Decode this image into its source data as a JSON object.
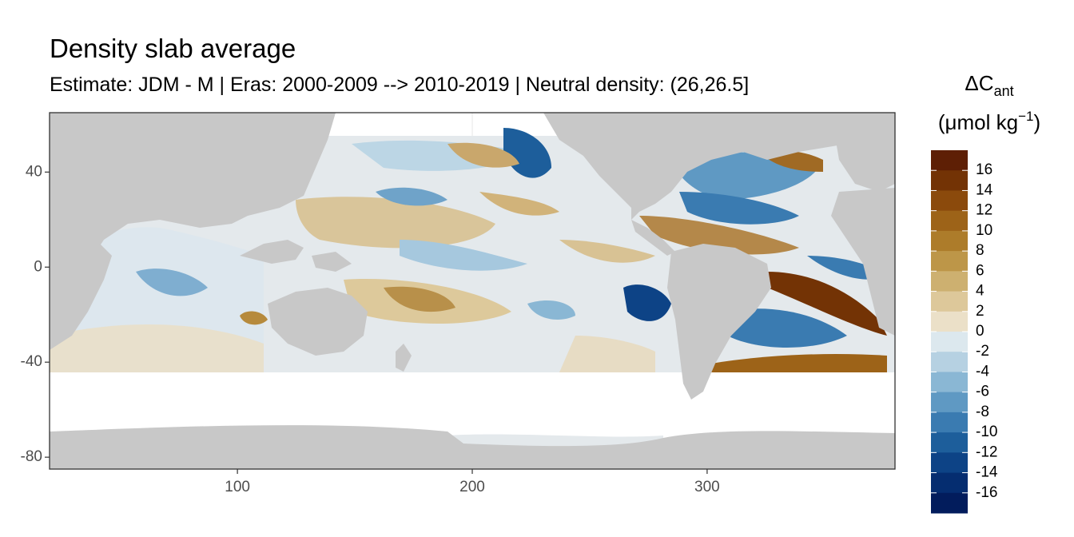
{
  "title": "Density slab average",
  "subtitle": "Estimate: JDM - M | Eras: 2000-2009 --> 2010-2019 | Neutral density: (26,26.5]",
  "legend": {
    "title_main": "ΔC",
    "title_sub": "ant",
    "unit_prefix": "(μmol kg",
    "unit_sup": "−1",
    "unit_suffix": ")",
    "labels": [
      "16",
      "14",
      "12",
      "10",
      "8",
      "6",
      "4",
      "2",
      "0",
      "-2",
      "-4",
      "-6",
      "-8",
      "-10",
      "-12",
      "-14",
      "-16"
    ],
    "colors": [
      "#5e1f05",
      "#733305",
      "#8b4a0c",
      "#9d6318",
      "#ad7c2a",
      "#bd9648",
      "#cdb070",
      "#ddc89a",
      "#ebe0c8",
      "#dce8ee",
      "#b6d1e2",
      "#8ab7d4",
      "#5f99c3",
      "#3a7bb1",
      "#1d5e9b",
      "#0d4386",
      "#052d70",
      "#021c5c"
    ],
    "land_color": "#c8c8c8"
  },
  "axes": {
    "x_ticks": [
      100,
      200,
      300
    ],
    "y_ticks": [
      40,
      0,
      -40,
      -80
    ],
    "x_range": [
      20,
      380
    ],
    "y_range": [
      -85,
      65
    ]
  }
}
